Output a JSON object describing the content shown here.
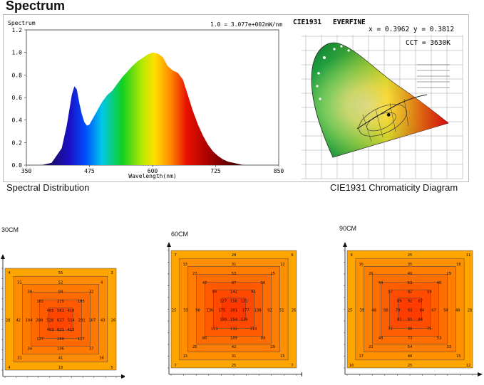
{
  "page_title": "Spectrum",
  "captions": {
    "spectral": "Spectral Distribution",
    "cie": "CIE1931 Chromaticity Diagram"
  },
  "chart_data": [
    {
      "type": "area",
      "ylabel": "Spectrum",
      "xlabel": "Wavelength(nm)",
      "note": "1.0 = 3.077e+002mW/nm",
      "xlim": [
        350,
        850
      ],
      "ylim": [
        0,
        1.2
      ],
      "xticks": [
        "350",
        "475",
        "600",
        "725",
        "850"
      ],
      "yticks": [
        "0.0",
        "0.2",
        "0.4",
        "0.6",
        "0.8",
        "1.0",
        "1.2"
      ],
      "x": [
        380,
        400,
        420,
        430,
        440,
        445,
        450,
        455,
        460,
        465,
        470,
        475,
        480,
        490,
        500,
        510,
        520,
        530,
        540,
        550,
        560,
        570,
        580,
        590,
        600,
        610,
        620,
        630,
        640,
        650,
        660,
        670,
        680,
        690,
        700,
        710,
        720,
        730,
        740,
        750,
        760,
        770,
        780
      ],
      "y": [
        0,
        0.02,
        0.15,
        0.35,
        0.62,
        0.7,
        0.67,
        0.55,
        0.45,
        0.38,
        0.35,
        0.36,
        0.4,
        0.48,
        0.56,
        0.62,
        0.66,
        0.72,
        0.78,
        0.83,
        0.88,
        0.92,
        0.95,
        0.98,
        1.0,
        0.99,
        0.96,
        0.88,
        0.84,
        0.82,
        0.76,
        0.62,
        0.48,
        0.36,
        0.26,
        0.18,
        0.12,
        0.08,
        0.05,
        0.03,
        0.02,
        0.01,
        0
      ]
    },
    {
      "type": "scatter",
      "title_left": "CIE1931",
      "title_right": "EVERFINE",
      "coord_text": "x = 0.3962 y = 0.3812",
      "cct_text": "CCT = 3630K",
      "point": {
        "x": 0.3962,
        "y": 0.3812
      }
    },
    {
      "type": "heatmap",
      "title": "30CM",
      "rings_labels": [
        [
          "4",
          "55",
          "3"
        ],
        [
          "31",
          "52",
          "4"
        ],
        [
          "30",
          "84",
          "32"
        ],
        [
          "102",
          "225",
          "105"
        ],
        [
          "405",
          "561",
          "410"
        ],
        [
          "28",
          "42",
          "104",
          "288",
          "528",
          "627",
          "514",
          "291",
          "107",
          "43",
          "26"
        ],
        [
          "403",
          "621",
          "413"
        ],
        [
          "127",
          "280",
          "127"
        ],
        [
          "34",
          "106",
          "37"
        ],
        [
          "31",
          "41",
          "36"
        ],
        [
          "4",
          "18",
          "5"
        ]
      ]
    },
    {
      "type": "heatmap",
      "title": "60CM",
      "rings_labels": [
        [
          "7",
          "20",
          "6"
        ],
        [
          "13",
          "31",
          "12"
        ],
        [
          "27",
          "53",
          "25"
        ],
        [
          "47",
          "87",
          "50"
        ],
        [
          "90",
          "142",
          "92"
        ],
        [
          "127",
          "158",
          "131"
        ],
        [
          "25",
          "55",
          "90",
          "136",
          "175",
          "201",
          "177",
          "138",
          "92",
          "51",
          "26"
        ],
        [
          "130",
          "154",
          "136"
        ],
        [
          "111",
          "112",
          "114"
        ],
        [
          "80",
          "109",
          "89"
        ],
        [
          "25",
          "42",
          "29"
        ],
        [
          "13",
          "31",
          "15"
        ],
        [
          "7",
          "25",
          "7"
        ]
      ]
    },
    {
      "type": "heatmap",
      "title": "90CM",
      "rings_labels": [
        [
          "9",
          "25",
          "11"
        ],
        [
          "16",
          "35",
          "18"
        ],
        [
          "26",
          "49",
          "29"
        ],
        [
          "44",
          "63",
          "46"
        ],
        [
          "57",
          "82",
          "59"
        ],
        [
          "89",
          "92",
          "87"
        ],
        [
          "25",
          "39",
          "48",
          "66",
          "79",
          "93",
          "84",
          "67",
          "50",
          "40",
          "28"
        ],
        [
          "81",
          "91",
          "84"
        ],
        [
          "72",
          "88",
          "75"
        ],
        [
          "48",
          "73",
          "53"
        ],
        [
          "21",
          "54",
          "33"
        ],
        [
          "17",
          "40",
          "15"
        ],
        [
          "10",
          "25",
          "12"
        ]
      ]
    }
  ]
}
